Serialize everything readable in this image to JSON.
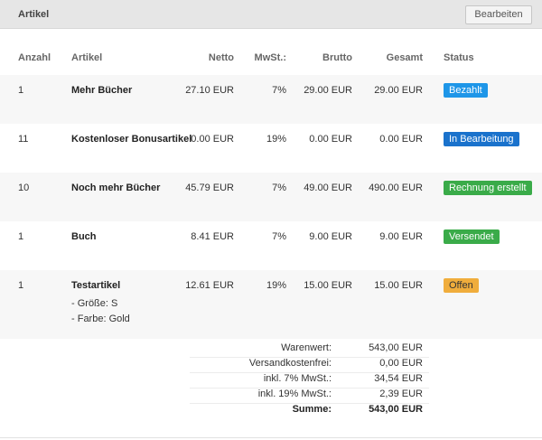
{
  "panel": {
    "title": "Artikel",
    "edit_label": "Bearbeiten"
  },
  "columns": {
    "qty": "Anzahl",
    "item": "Artikel",
    "net": "Netto",
    "vat": "MwSt.:",
    "gross": "Brutto",
    "total": "Gesamt",
    "status": "Status"
  },
  "rows": [
    {
      "qty": "1",
      "name": "Mehr Bücher",
      "net": "27.10 EUR",
      "vat": "7%",
      "gross": "29.00 EUR",
      "total": "29.00 EUR",
      "status": "Bezahlt",
      "status_color": "#1e96e8",
      "variants": []
    },
    {
      "qty": "11",
      "name": "Kostenloser Bonusartikel",
      "net": "0.00 EUR",
      "vat": "19%",
      "gross": "0.00 EUR",
      "total": "0.00 EUR",
      "status": "In Bearbeitung",
      "status_color": "#1a72cc",
      "variants": []
    },
    {
      "qty": "10",
      "name": "Noch mehr Bücher",
      "net": "45.79 EUR",
      "vat": "7%",
      "gross": "49.00 EUR",
      "total": "490.00 EUR",
      "status": "Rechnung erstellt",
      "status_color": "#3aab49",
      "variants": []
    },
    {
      "qty": "1",
      "name": "Buch",
      "net": "8.41 EUR",
      "vat": "7%",
      "gross": "9.00 EUR",
      "total": "9.00 EUR",
      "status": "Versendet",
      "status_color": "#3aab49",
      "variants": []
    },
    {
      "qty": "1",
      "name": "Testartikel",
      "net": "12.61 EUR",
      "vat": "19%",
      "gross": "15.00 EUR",
      "total": "15.00 EUR",
      "status": "Offen",
      "status_color": "#f0ad3c",
      "variants": [
        "- Größe: S",
        "- Farbe: Gold"
      ]
    }
  ],
  "summary": [
    {
      "label": "Warenwert:",
      "value": "543,00 EUR"
    },
    {
      "label": "Versandkostenfrei:",
      "value": "0,00 EUR"
    },
    {
      "label": "inkl. 7% MwSt.:",
      "value": "34,54 EUR"
    },
    {
      "label": "inkl. 19% MwSt.:",
      "value": "2,39 EUR"
    },
    {
      "label": "Summe:",
      "value": "543,00 EUR"
    }
  ]
}
